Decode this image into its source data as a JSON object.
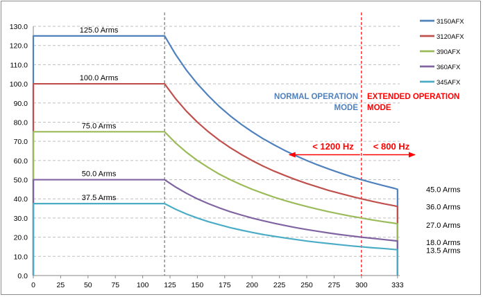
{
  "chart_data": {
    "type": "line",
    "title": "",
    "xlabel": "",
    "ylabel": "",
    "xlim": [
      0,
      335
    ],
    "ylim": [
      0,
      130
    ],
    "xticks": [
      0,
      25,
      50,
      75,
      100,
      125,
      150,
      175,
      200,
      225,
      250,
      275,
      300,
      333
    ],
    "xtick_labels": [
      "0",
      "25",
      "50",
      "75",
      "100",
      "125",
      "150",
      "175",
      "200",
      "225",
      "250",
      "275",
      "300",
      "333"
    ],
    "yticks": [
      0,
      10,
      20,
      30,
      40,
      50,
      60,
      70,
      80,
      90,
      100,
      110,
      120,
      130
    ],
    "ytick_labels": [
      "0.0",
      "10.0",
      "20.0",
      "30.0",
      "40.0",
      "50.0",
      "60.0",
      "70.0",
      "80.0",
      "90.0",
      "100.0",
      "110.0",
      "120.0",
      "130.0"
    ],
    "grid": "horizontal-dashed",
    "legend_position": "top-right",
    "x_breakpoint": 120,
    "x": [
      0,
      120,
      130,
      140,
      150,
      160,
      170,
      180,
      190,
      200,
      210,
      220,
      230,
      240,
      250,
      260,
      270,
      280,
      290,
      300,
      310,
      320,
      330
    ],
    "series": [
      {
        "name": "3150AFX",
        "color": "#4f81bd",
        "flat_label": "125.0 Arms",
        "end_label": "45.0 Arms",
        "end_value": 45,
        "values": [
          125,
          125,
          115.4,
          107.1,
          100.0,
          93.8,
          88.2,
          83.3,
          78.9,
          75.0,
          71.4,
          68.2,
          65.2,
          62.5,
          60.0,
          57.7,
          55.6,
          53.6,
          51.7,
          50.0,
          48.4,
          46.9,
          45.5
        ]
      },
      {
        "name": "3120AFX",
        "color": "#c0504d",
        "flat_label": "100.0 Arms",
        "end_label": "36.0 Arms",
        "end_value": 36,
        "values": [
          100,
          100,
          92.3,
          85.7,
          80.0,
          75.0,
          70.6,
          66.7,
          63.2,
          60.0,
          57.1,
          54.5,
          52.2,
          50.0,
          48.0,
          46.2,
          44.4,
          42.9,
          41.4,
          40.0,
          38.7,
          37.5,
          36.4
        ]
      },
      {
        "name": "390AFX",
        "color": "#9bbb59",
        "flat_label": "75.0 Arms",
        "end_label": "27.0 Arms",
        "end_value": 27,
        "values": [
          75,
          75,
          69.2,
          64.3,
          60.0,
          56.3,
          52.9,
          50.0,
          47.4,
          45.0,
          42.9,
          40.9,
          39.1,
          37.5,
          36.0,
          34.6,
          33.3,
          32.1,
          31.0,
          30.0,
          29.0,
          28.1,
          27.3
        ]
      },
      {
        "name": "360AFX",
        "color": "#8064a2",
        "flat_label": "50.0 Arms",
        "end_label": "18.0 Arms",
        "end_value": 18,
        "values": [
          50,
          50,
          46.2,
          42.9,
          40.0,
          37.5,
          35.3,
          33.3,
          31.6,
          30.0,
          28.6,
          27.3,
          26.1,
          25.0,
          24.0,
          23.1,
          22.2,
          21.4,
          20.7,
          20.0,
          19.4,
          18.8,
          18.2
        ]
      },
      {
        "name": "345AFX",
        "color": "#4bacc6",
        "flat_label": "37.5 Arms",
        "end_label": "13.5 Arms",
        "end_value": 13.5,
        "values": [
          37.5,
          37.5,
          34.6,
          32.1,
          30.0,
          28.1,
          26.5,
          25.0,
          23.7,
          22.5,
          21.4,
          20.5,
          19.6,
          18.8,
          18.0,
          17.3,
          16.7,
          16.1,
          15.5,
          15.0,
          14.5,
          14.1,
          13.6
        ]
      }
    ],
    "annotations": {
      "normal_mode": {
        "line1": "NORMAL OPERATION",
        "line2": "MODE",
        "color": "#4f81bd"
      },
      "extended_mode": {
        "line1": "EXTENDED OPERATION",
        "line2": "MODE",
        "color": "#ff0000"
      },
      "normal_freq": {
        "text": "< 1200 Hz",
        "color": "#ff0000"
      },
      "extended_freq": {
        "text": "< 800 Hz",
        "color": "#ff0000"
      },
      "extended_boundary_x": 300,
      "freq_arrow_y": 63
    }
  }
}
